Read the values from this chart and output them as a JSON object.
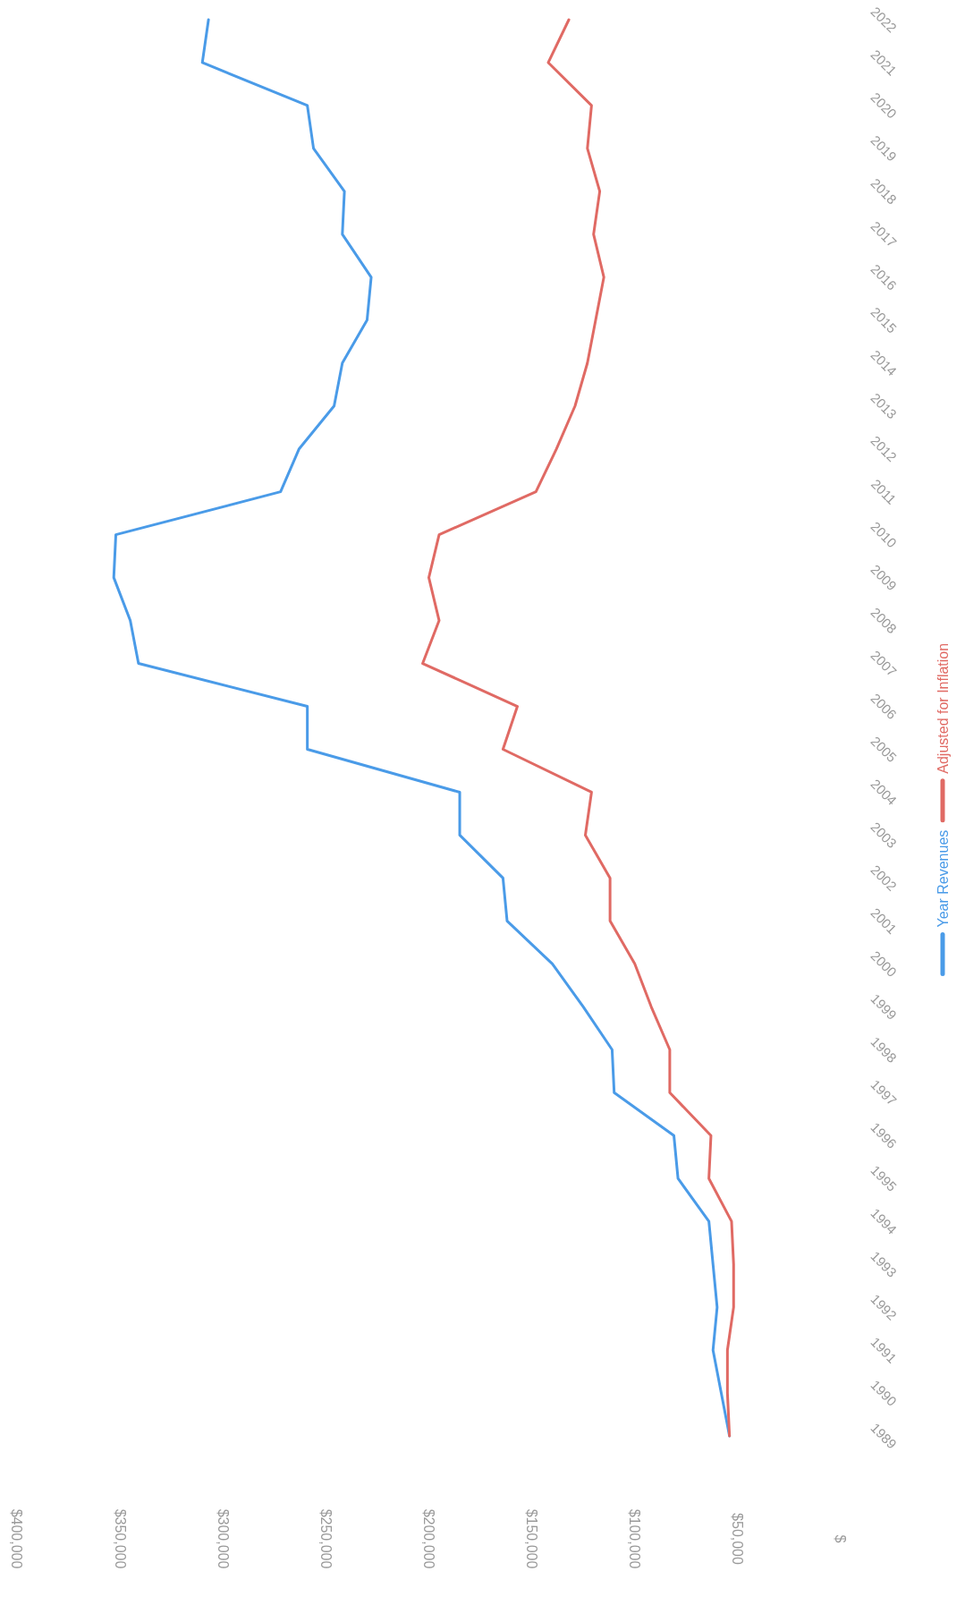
{
  "chart_data": {
    "type": "line",
    "orientation": "horizontal",
    "categories": [
      "2022",
      "2021",
      "2020",
      "2019",
      "2018",
      "2017",
      "2016",
      "2015",
      "2014",
      "2013",
      "2012",
      "2011",
      "2010",
      "2009",
      "2008",
      "2007",
      "2006",
      "2005",
      "2004",
      "2003",
      "2002",
      "2001",
      "2000",
      "1999",
      "1998",
      "1997",
      "1996",
      "1995",
      "1994",
      "1993",
      "1992",
      "1991",
      "1990",
      "1989"
    ],
    "series": [
      {
        "name": "Year Revenues",
        "color": "#4a9be8",
        "values": [
          307000,
          310000,
          259000,
          256000,
          241000,
          242000,
          228000,
          230000,
          242000,
          246000,
          263000,
          272000,
          352000,
          353000,
          345000,
          341000,
          259000,
          259000,
          185000,
          185000,
          164000,
          162000,
          140000,
          125000,
          111000,
          110000,
          81000,
          79000,
          64000,
          62000,
          60000,
          62000,
          58000,
          54000
        ]
      },
      {
        "name": "Adjusted for Inflation",
        "color": "#e06a64",
        "values": [
          132000,
          142000,
          121000,
          123000,
          117000,
          120000,
          115000,
          119000,
          123000,
          129000,
          138000,
          148000,
          195000,
          200000,
          195000,
          203000,
          157000,
          164000,
          121000,
          124000,
          112000,
          112000,
          100000,
          92000,
          83000,
          83000,
          63000,
          64000,
          53000,
          52000,
          52000,
          55000,
          55000,
          54000
        ]
      }
    ],
    "xlim": [
      400000,
      0
    ],
    "xticks": [
      {
        "value": 400000,
        "label": "$400,000"
      },
      {
        "value": 350000,
        "label": "$350,000"
      },
      {
        "value": 300000,
        "label": "$300,000"
      },
      {
        "value": 250000,
        "label": "$250,000"
      },
      {
        "value": 200000,
        "label": "$200,000"
      },
      {
        "value": 150000,
        "label": "$150,000"
      },
      {
        "value": 100000,
        "label": "$100,000"
      },
      {
        "value": 50000,
        "label": "$50,000"
      },
      {
        "value": 0,
        "label": "$"
      }
    ],
    "grid": false,
    "legend": "right",
    "marker": "none",
    "line_style": "solid"
  }
}
